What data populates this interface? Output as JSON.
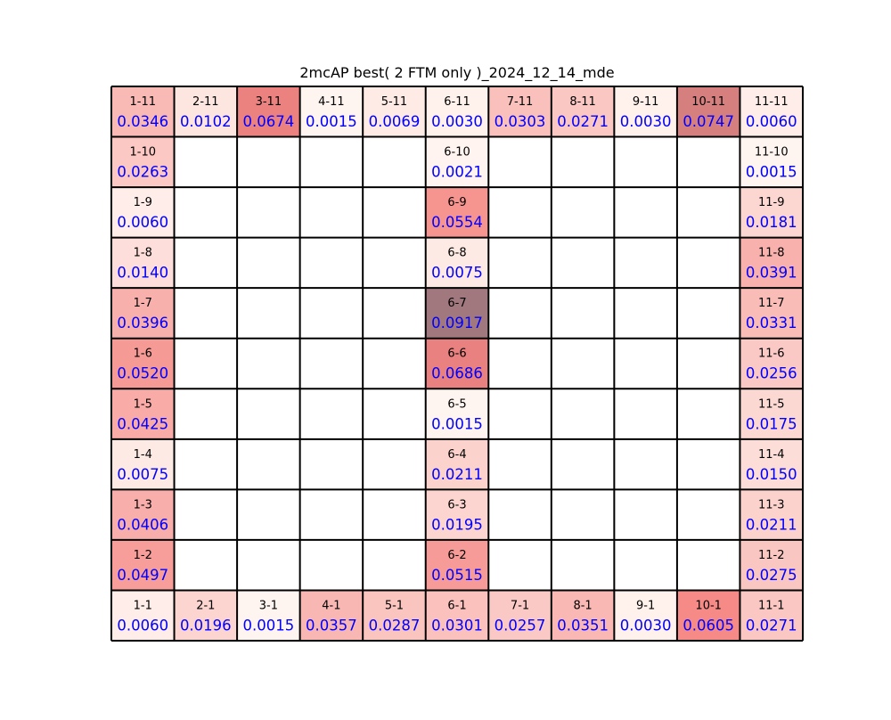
{
  "chart_data": {
    "type": "heatmap",
    "title": "2mcAP best( 2 FTM only )_2024_12_14_mde",
    "grid": {
      "cols": 11,
      "rows": 11
    },
    "colors": {
      "low": "#fff5f0",
      "mid": "#f4837f",
      "high": "#a0787e",
      "value_text": "#0000ff",
      "label_text": "#000000"
    },
    "value_range": [
      0.0015,
      0.0917
    ],
    "cells": [
      {
        "col": 1,
        "row": 11,
        "label": "1-11",
        "value": "0.0346"
      },
      {
        "col": 2,
        "row": 11,
        "label": "2-11",
        "value": "0.0102"
      },
      {
        "col": 3,
        "row": 11,
        "label": "3-11",
        "value": "0.0674"
      },
      {
        "col": 4,
        "row": 11,
        "label": "4-11",
        "value": "0.0015"
      },
      {
        "col": 5,
        "row": 11,
        "label": "5-11",
        "value": "0.0069"
      },
      {
        "col": 6,
        "row": 11,
        "label": "6-11",
        "value": "0.0030"
      },
      {
        "col": 7,
        "row": 11,
        "label": "7-11",
        "value": "0.0303"
      },
      {
        "col": 8,
        "row": 11,
        "label": "8-11",
        "value": "0.0271"
      },
      {
        "col": 9,
        "row": 11,
        "label": "9-11",
        "value": "0.0030"
      },
      {
        "col": 10,
        "row": 11,
        "label": "10-11",
        "value": "0.0747"
      },
      {
        "col": 11,
        "row": 11,
        "label": "11-11",
        "value": "0.0060"
      },
      {
        "col": 1,
        "row": 10,
        "label": "1-10",
        "value": "0.0263"
      },
      {
        "col": 6,
        "row": 10,
        "label": "6-10",
        "value": "0.0021"
      },
      {
        "col": 11,
        "row": 10,
        "label": "11-10",
        "value": "0.0015"
      },
      {
        "col": 1,
        "row": 9,
        "label": "1-9",
        "value": "0.0060"
      },
      {
        "col": 6,
        "row": 9,
        "label": "6-9",
        "value": "0.0554"
      },
      {
        "col": 11,
        "row": 9,
        "label": "11-9",
        "value": "0.0181"
      },
      {
        "col": 1,
        "row": 8,
        "label": "1-8",
        "value": "0.0140"
      },
      {
        "col": 6,
        "row": 8,
        "label": "6-8",
        "value": "0.0075"
      },
      {
        "col": 11,
        "row": 8,
        "label": "11-8",
        "value": "0.0391"
      },
      {
        "col": 1,
        "row": 7,
        "label": "1-7",
        "value": "0.0396"
      },
      {
        "col": 6,
        "row": 7,
        "label": "6-7",
        "value": "0.0917"
      },
      {
        "col": 11,
        "row": 7,
        "label": "11-7",
        "value": "0.0331"
      },
      {
        "col": 1,
        "row": 6,
        "label": "1-6",
        "value": "0.0520"
      },
      {
        "col": 6,
        "row": 6,
        "label": "6-6",
        "value": "0.0686"
      },
      {
        "col": 11,
        "row": 6,
        "label": "11-6",
        "value": "0.0256"
      },
      {
        "col": 1,
        "row": 5,
        "label": "1-5",
        "value": "0.0425"
      },
      {
        "col": 6,
        "row": 5,
        "label": "6-5",
        "value": "0.0015"
      },
      {
        "col": 11,
        "row": 5,
        "label": "11-5",
        "value": "0.0175"
      },
      {
        "col": 1,
        "row": 4,
        "label": "1-4",
        "value": "0.0075"
      },
      {
        "col": 6,
        "row": 4,
        "label": "6-4",
        "value": "0.0211"
      },
      {
        "col": 11,
        "row": 4,
        "label": "11-4",
        "value": "0.0150"
      },
      {
        "col": 1,
        "row": 3,
        "label": "1-3",
        "value": "0.0406"
      },
      {
        "col": 6,
        "row": 3,
        "label": "6-3",
        "value": "0.0195"
      },
      {
        "col": 11,
        "row": 3,
        "label": "11-3",
        "value": "0.0211"
      },
      {
        "col": 1,
        "row": 2,
        "label": "1-2",
        "value": "0.0497"
      },
      {
        "col": 6,
        "row": 2,
        "label": "6-2",
        "value": "0.0515"
      },
      {
        "col": 11,
        "row": 2,
        "label": "11-2",
        "value": "0.0275"
      },
      {
        "col": 1,
        "row": 1,
        "label": "1-1",
        "value": "0.0060"
      },
      {
        "col": 2,
        "row": 1,
        "label": "2-1",
        "value": "0.0196"
      },
      {
        "col": 3,
        "row": 1,
        "label": "3-1",
        "value": "0.0015"
      },
      {
        "col": 4,
        "row": 1,
        "label": "4-1",
        "value": "0.0357"
      },
      {
        "col": 5,
        "row": 1,
        "label": "5-1",
        "value": "0.0287"
      },
      {
        "col": 6,
        "row": 1,
        "label": "6-1",
        "value": "0.0301"
      },
      {
        "col": 7,
        "row": 1,
        "label": "7-1",
        "value": "0.0257"
      },
      {
        "col": 8,
        "row": 1,
        "label": "8-1",
        "value": "0.0351"
      },
      {
        "col": 9,
        "row": 1,
        "label": "9-1",
        "value": "0.0030"
      },
      {
        "col": 10,
        "row": 1,
        "label": "10-1",
        "value": "0.0605"
      },
      {
        "col": 11,
        "row": 1,
        "label": "11-1",
        "value": "0.0271"
      }
    ]
  }
}
